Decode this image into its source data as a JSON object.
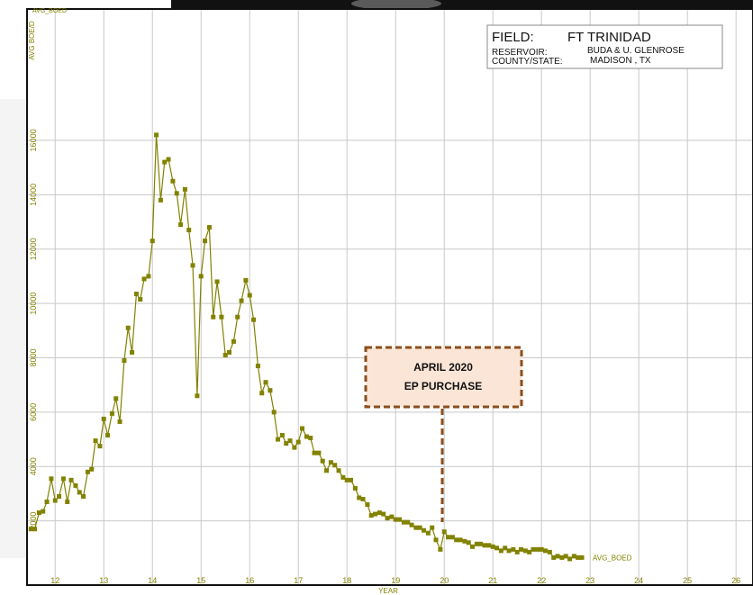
{
  "chart_data": {
    "type": "line",
    "y_label": "AVG BOE/D",
    "x_label": "YEAR",
    "info": {
      "field_label": "FIELD:",
      "field": "FT TRINIDAD",
      "reservoir_label": "RESERVOIR:",
      "reservoir": "BUDA & U. GLENROSE",
      "county_label": "COUNTY/STATE:",
      "county": "MADISON , TX"
    },
    "annotation": [
      "APRIL 2020",
      "EP PURCHASE"
    ],
    "x": [
      11.5,
      11.58,
      11.67,
      11.75,
      11.83,
      11.92,
      12.0,
      12.08,
      12.17,
      12.25,
      12.33,
      12.42,
      12.5,
      12.58,
      12.67,
      12.75,
      12.83,
      12.92,
      13.0,
      13.08,
      13.17,
      13.25,
      13.33,
      13.42,
      13.5,
      13.58,
      13.67,
      13.75,
      13.83,
      13.92,
      14.0,
      14.08,
      14.17,
      14.25,
      14.33,
      14.42,
      14.5,
      14.58,
      14.67,
      14.75,
      14.83,
      14.92,
      15.0,
      15.08,
      15.17,
      15.25,
      15.33,
      15.42,
      15.5,
      15.58,
      15.67,
      15.75,
      15.83,
      15.92,
      16.0,
      16.08,
      16.17,
      16.25,
      16.33,
      16.42,
      16.5,
      16.58,
      16.67,
      16.75,
      16.83,
      16.92,
      17.0,
      17.08,
      17.17,
      17.25,
      17.33,
      17.42,
      17.5,
      17.58,
      17.67,
      17.75,
      17.83,
      17.92,
      18.0,
      18.08,
      18.17,
      18.25,
      18.33,
      18.42,
      18.5,
      18.58,
      18.67,
      18.75,
      18.83,
      18.92,
      19.0,
      19.08,
      19.17,
      19.25,
      19.33,
      19.42,
      19.5,
      19.58,
      19.67,
      19.75,
      19.83,
      19.92,
      20.0,
      20.08,
      20.17,
      20.25,
      20.33,
      20.42,
      20.5,
      20.58,
      20.67,
      20.75,
      20.83,
      20.92,
      21.0,
      21.08,
      21.17,
      21.25,
      21.33,
      21.42,
      21.5,
      21.58,
      21.67,
      21.75,
      21.83,
      21.92,
      22.0,
      22.08,
      22.17,
      22.25,
      22.33,
      22.42,
      22.5,
      22.58,
      22.67,
      22.75,
      22.83
    ],
    "series": [
      {
        "name": "AVG_BOED",
        "color": "#828200",
        "values": [
          1700,
          1700,
          2300,
          2350,
          2700,
          3550,
          2750,
          2900,
          3550,
          2700,
          3500,
          3300,
          3050,
          2900,
          3800,
          3900,
          4950,
          4750,
          5750,
          5150,
          5950,
          6500,
          5650,
          7900,
          9100,
          8200,
          10350,
          10150,
          10900,
          11000,
          12300,
          16200,
          13800,
          15200,
          15300,
          14500,
          14050,
          12900,
          14200,
          12700,
          11400,
          6600,
          11000,
          12300,
          12800,
          9500,
          10800,
          9500,
          8100,
          8200,
          8600,
          9500,
          10100,
          10850,
          10300,
          9400,
          7700,
          6700,
          7100,
          6800,
          6000,
          5000,
          5150,
          4850,
          4950,
          4700,
          4900,
          5400,
          5100,
          5050,
          4500,
          4500,
          4200,
          3850,
          4150,
          4050,
          3850,
          3600,
          3500,
          3500,
          3200,
          2850,
          2800,
          2600,
          2200,
          2250,
          2300,
          2250,
          2100,
          2150,
          2050,
          2050,
          1950,
          1950,
          1850,
          1750,
          1750,
          1650,
          1550,
          1750,
          1300,
          950,
          1600,
          1400,
          1400,
          1300,
          1300,
          1250,
          1200,
          1050,
          1150,
          1150,
          1100,
          1100,
          1050,
          1000,
          900,
          1000,
          900,
          950,
          850,
          950,
          900,
          850,
          950,
          950,
          950,
          900,
          850,
          650,
          700,
          650,
          700,
          600,
          700,
          650,
          650
        ]
      }
    ],
    "xlim": [
      11.44,
      26.33
    ],
    "xticks": [
      12,
      13,
      14,
      15,
      16,
      17,
      18,
      19,
      20,
      21,
      22,
      23,
      24,
      25,
      26
    ],
    "ylim": [
      -330,
      20800
    ],
    "yticks": [
      2000,
      4000,
      6000,
      8000,
      10000,
      12000,
      14000,
      16000
    ],
    "grid": true
  }
}
